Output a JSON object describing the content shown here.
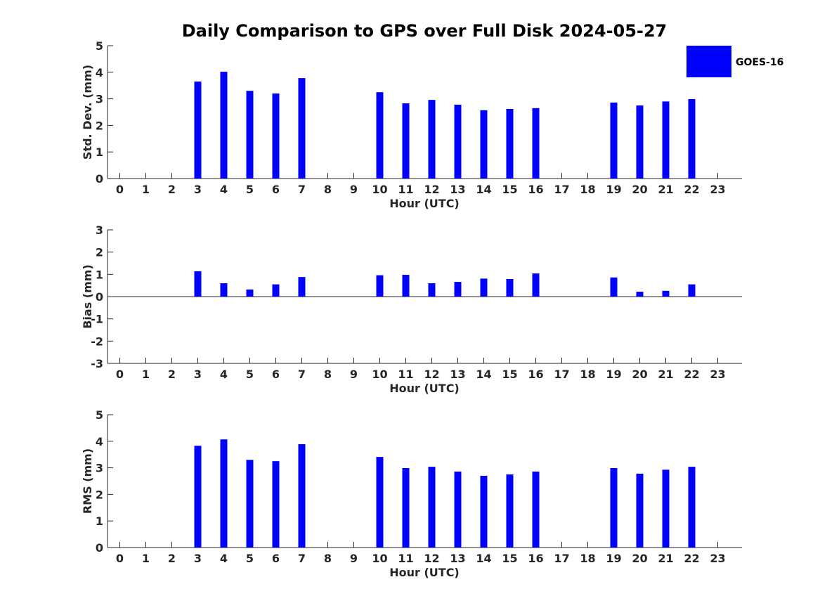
{
  "chart_data": {
    "title": "Daily Comparison to GPS over Full Disk 2024-05-27",
    "bar_color": "#0000ff",
    "legend": {
      "label": "GOES-16",
      "placement": "top-right"
    },
    "panels": [
      {
        "id": "std",
        "type": "bar",
        "ylabel": "Std. Dev. (mm)",
        "xlabel": "Hour (UTC)",
        "ylim": [
          0,
          5
        ],
        "yticks": [
          0,
          1,
          2,
          3,
          4,
          5
        ],
        "categories": [
          0,
          1,
          2,
          3,
          4,
          5,
          6,
          7,
          8,
          9,
          10,
          11,
          12,
          13,
          14,
          15,
          16,
          17,
          18,
          19,
          20,
          21,
          22,
          23
        ],
        "values": [
          null,
          null,
          null,
          3.65,
          4.02,
          3.3,
          3.2,
          3.78,
          null,
          null,
          3.25,
          2.83,
          2.96,
          2.78,
          2.57,
          2.62,
          2.65,
          null,
          null,
          2.86,
          2.75,
          2.9,
          2.99,
          null
        ]
      },
      {
        "id": "bias",
        "type": "bar",
        "ylabel": "Bias (mm)",
        "xlabel": "Hour (UTC)",
        "ylim": [
          -3,
          3
        ],
        "yticks": [
          -3,
          -2,
          -1,
          0,
          1,
          2,
          3
        ],
        "categories": [
          0,
          1,
          2,
          3,
          4,
          5,
          6,
          7,
          8,
          9,
          10,
          11,
          12,
          13,
          14,
          15,
          16,
          17,
          18,
          19,
          20,
          21,
          22,
          23
        ],
        "values": [
          null,
          null,
          null,
          1.14,
          0.6,
          0.32,
          0.55,
          0.88,
          null,
          null,
          0.96,
          0.98,
          0.6,
          0.66,
          0.81,
          0.79,
          1.04,
          null,
          null,
          0.86,
          0.22,
          0.26,
          0.55,
          null
        ]
      },
      {
        "id": "rms",
        "type": "bar",
        "ylabel": "RMS (mm)",
        "xlabel": "Hour (UTC)",
        "ylim": [
          0,
          5
        ],
        "yticks": [
          0,
          1,
          2,
          3,
          4,
          5
        ],
        "categories": [
          0,
          1,
          2,
          3,
          4,
          5,
          6,
          7,
          8,
          9,
          10,
          11,
          12,
          13,
          14,
          15,
          16,
          17,
          18,
          19,
          20,
          21,
          22,
          23
        ],
        "values": [
          null,
          null,
          null,
          3.83,
          4.07,
          3.3,
          3.25,
          3.89,
          null,
          null,
          3.41,
          2.99,
          3.04,
          2.86,
          2.7,
          2.75,
          2.86,
          null,
          null,
          2.99,
          2.78,
          2.93,
          3.04,
          null
        ]
      }
    ]
  }
}
